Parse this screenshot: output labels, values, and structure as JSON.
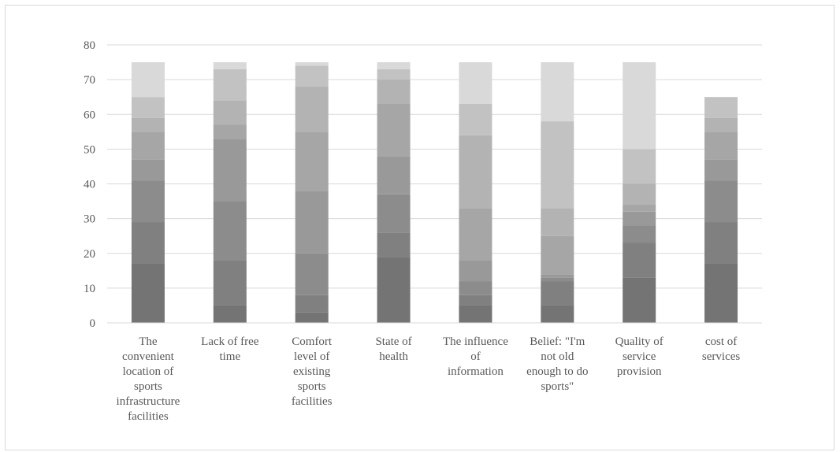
{
  "chart_data": {
    "type": "bar",
    "stacked": true,
    "title": "",
    "xlabel": "",
    "ylabel": "",
    "ylim": [
      0,
      80
    ],
    "y_ticks": [
      0,
      10,
      20,
      30,
      40,
      50,
      60,
      70,
      80
    ],
    "grid": true,
    "legend": "none",
    "categories": [
      "The convenient location of sports infrastructure facilities",
      "Lack of free time",
      "Comfort level of existing sports facilities",
      "State of health",
      "The influence of information",
      "Belief: \"I'm not old enough to do sports\"",
      "Quality of service provision",
      "cost of services"
    ],
    "category_label_lines": [
      [
        "The",
        "convenient",
        "location of",
        "sports",
        "infrastructure",
        "facilities"
      ],
      [
        "Lack of free",
        "time"
      ],
      [
        "Comfort",
        "level of",
        "existing",
        "sports",
        "facilities"
      ],
      [
        "State of",
        "health"
      ],
      [
        "The influence",
        "of",
        "information"
      ],
      [
        "Belief: \"I'm",
        "not old",
        "enough to do",
        "sports\""
      ],
      [
        "Quality of",
        "service",
        "provision"
      ],
      [
        "cost of",
        "services"
      ]
    ],
    "series_colors": [
      "#747474",
      "#808080",
      "#8c8c8c",
      "#999999",
      "#a6a6a6",
      "#b3b3b3",
      "#c2c2c2",
      "#d9d9d9"
    ],
    "series": [
      {
        "values": [
          17,
          5,
          3,
          19,
          5,
          5,
          13,
          17
        ]
      },
      {
        "values": [
          12,
          13,
          5,
          7,
          3,
          7,
          10,
          12
        ]
      },
      {
        "values": [
          12,
          17,
          12,
          11,
          4,
          1,
          5,
          12
        ]
      },
      {
        "values": [
          6,
          18,
          18,
          11,
          6,
          1,
          4,
          6
        ]
      },
      {
        "values": [
          8,
          4,
          17,
          15,
          15,
          11,
          2,
          8
        ]
      },
      {
        "values": [
          4,
          7,
          13,
          7,
          21,
          8,
          6,
          4
        ]
      },
      {
        "values": [
          6,
          9,
          6,
          3,
          9,
          25,
          10,
          6
        ]
      },
      {
        "values": [
          10,
          2,
          1,
          2,
          12,
          17,
          25,
          0
        ]
      }
    ]
  }
}
